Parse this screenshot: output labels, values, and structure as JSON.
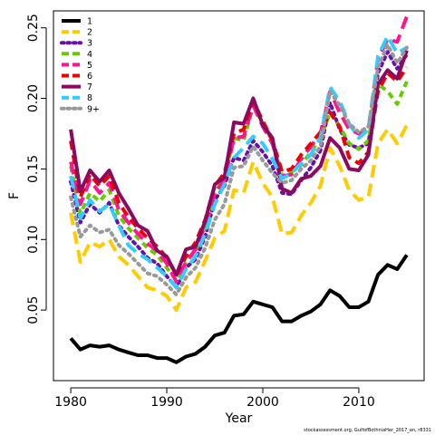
{
  "chart_data": {
    "type": "line",
    "title": "",
    "xlabel": "Year",
    "ylabel": "F",
    "xlim": [
      1978.2,
      1976.8
    ],
    "ylim": [
      0.0,
      0.262
    ],
    "x_ticks": [
      1980,
      1990,
      2000,
      2010
    ],
    "x_tick_labels": [
      "1980",
      "1990",
      "2000",
      "2010"
    ],
    "y_ticks": [
      0.05,
      0.1,
      0.15,
      0.2,
      0.25
    ],
    "y_tick_labels": [
      "0.05",
      "0.10",
      "0.15",
      "0.20",
      "0.25"
    ],
    "grid": false,
    "legend_position": "top-left",
    "x": [
      1980,
      1981,
      1982,
      1983,
      1984,
      1985,
      1986,
      1987,
      1988,
      1989,
      1990,
      1991,
      1992,
      1993,
      1994,
      1995,
      1996,
      1997,
      1998,
      1999,
      2000,
      2001,
      2002,
      2003,
      2004,
      2005,
      2006,
      2007,
      2008,
      2009,
      2010,
      2011,
      2012,
      2013,
      2014,
      2015
    ],
    "series": [
      {
        "name": "1",
        "color": "#000000",
        "dash": "solid",
        "values": [
          0.03,
          0.022,
          0.025,
          0.024,
          0.025,
          0.022,
          0.02,
          0.018,
          0.018,
          0.016,
          0.016,
          0.013,
          0.017,
          0.019,
          0.024,
          0.032,
          0.034,
          0.046,
          0.047,
          0.056,
          0.054,
          0.052,
          0.042,
          0.042,
          0.046,
          0.049,
          0.054,
          0.064,
          0.06,
          0.052,
          0.052,
          0.056,
          0.075,
          0.082,
          0.079,
          0.089
        ]
      },
      {
        "name": "2",
        "color": "#FFCC00",
        "dash": "long",
        "values": [
          0.119,
          0.084,
          0.098,
          0.095,
          0.1,
          0.088,
          0.082,
          0.074,
          0.066,
          0.064,
          0.06,
          0.05,
          0.066,
          0.07,
          0.085,
          0.101,
          0.106,
          0.135,
          0.133,
          0.155,
          0.14,
          0.13,
          0.104,
          0.105,
          0.117,
          0.126,
          0.138,
          0.165,
          0.152,
          0.135,
          0.128,
          0.13,
          0.168,
          0.178,
          0.168,
          0.181
        ]
      },
      {
        "name": "3",
        "color": "#6A0DAD",
        "dash": "dot",
        "values": [
          0.141,
          0.112,
          0.125,
          0.119,
          0.126,
          0.11,
          0.102,
          0.095,
          0.087,
          0.083,
          0.074,
          0.066,
          0.08,
          0.086,
          0.102,
          0.128,
          0.138,
          0.158,
          0.156,
          0.17,
          0.162,
          0.152,
          0.133,
          0.132,
          0.142,
          0.151,
          0.163,
          0.197,
          0.178,
          0.167,
          0.165,
          0.168,
          0.218,
          0.233,
          0.221,
          0.231
        ]
      },
      {
        "name": "4",
        "color": "#66CC00",
        "dash": "short",
        "values": [
          0.152,
          0.118,
          0.133,
          0.127,
          0.135,
          0.117,
          0.108,
          0.101,
          0.094,
          0.089,
          0.08,
          0.071,
          0.084,
          0.092,
          0.108,
          0.133,
          0.144,
          0.172,
          0.17,
          0.195,
          0.182,
          0.17,
          0.145,
          0.148,
          0.153,
          0.162,
          0.172,
          0.19,
          0.18,
          0.168,
          0.164,
          0.17,
          0.21,
          0.205,
          0.196,
          0.212
        ]
      },
      {
        "name": "5",
        "color": "#FF1493",
        "dash": "long",
        "values": [
          0.155,
          0.125,
          0.142,
          0.133,
          0.14,
          0.121,
          0.112,
          0.104,
          0.097,
          0.092,
          0.083,
          0.07,
          0.084,
          0.093,
          0.11,
          0.133,
          0.142,
          0.172,
          0.173,
          0.195,
          0.18,
          0.168,
          0.145,
          0.146,
          0.157,
          0.166,
          0.175,
          0.205,
          0.19,
          0.178,
          0.175,
          0.178,
          0.228,
          0.242,
          0.24,
          0.258
        ]
      },
      {
        "name": "6",
        "color": "#EE0000",
        "dash": "medium",
        "values": [
          0.17,
          0.13,
          0.146,
          0.138,
          0.145,
          0.126,
          0.116,
          0.108,
          0.101,
          0.095,
          0.087,
          0.075,
          0.088,
          0.098,
          0.114,
          0.138,
          0.147,
          0.175,
          0.178,
          0.198,
          0.184,
          0.17,
          0.148,
          0.15,
          0.16,
          0.168,
          0.176,
          0.19,
          0.18,
          0.158,
          0.154,
          0.162,
          0.205,
          0.218,
          0.212,
          0.222
        ]
      },
      {
        "name": "7",
        "color": "#8B0A5F",
        "dash": "solid",
        "values": [
          0.178,
          0.134,
          0.149,
          0.141,
          0.149,
          0.133,
          0.122,
          0.11,
          0.106,
          0.092,
          0.088,
          0.075,
          0.093,
          0.095,
          0.113,
          0.139,
          0.144,
          0.183,
          0.182,
          0.2,
          0.181,
          0.172,
          0.136,
          0.133,
          0.143,
          0.145,
          0.152,
          0.172,
          0.165,
          0.15,
          0.149,
          0.16,
          0.21,
          0.22,
          0.214,
          0.234
        ]
      },
      {
        "name": "8",
        "color": "#33CCFF",
        "dash": "long",
        "values": [
          0.145,
          0.115,
          0.128,
          0.12,
          0.125,
          0.11,
          0.096,
          0.09,
          0.086,
          0.08,
          0.074,
          0.066,
          0.079,
          0.088,
          0.104,
          0.125,
          0.139,
          0.158,
          0.165,
          0.173,
          0.168,
          0.157,
          0.143,
          0.147,
          0.154,
          0.16,
          0.172,
          0.208,
          0.198,
          0.182,
          0.172,
          0.178,
          0.23,
          0.244,
          0.232,
          0.236
        ]
      },
      {
        "name": "9+",
        "color": "#999999",
        "dash": "dot",
        "values": [
          0.13,
          0.102,
          0.11,
          0.105,
          0.107,
          0.096,
          0.09,
          0.083,
          0.076,
          0.074,
          0.068,
          0.061,
          0.073,
          0.08,
          0.094,
          0.114,
          0.125,
          0.151,
          0.152,
          0.166,
          0.156,
          0.147,
          0.14,
          0.142,
          0.15,
          0.156,
          0.166,
          0.205,
          0.195,
          0.182,
          0.176,
          0.18,
          0.222,
          0.238,
          0.225,
          0.236
        ]
      }
    ]
  },
  "credit_text": "stockassessment.org, GulfofBothniaHer_2017_an, r8331"
}
